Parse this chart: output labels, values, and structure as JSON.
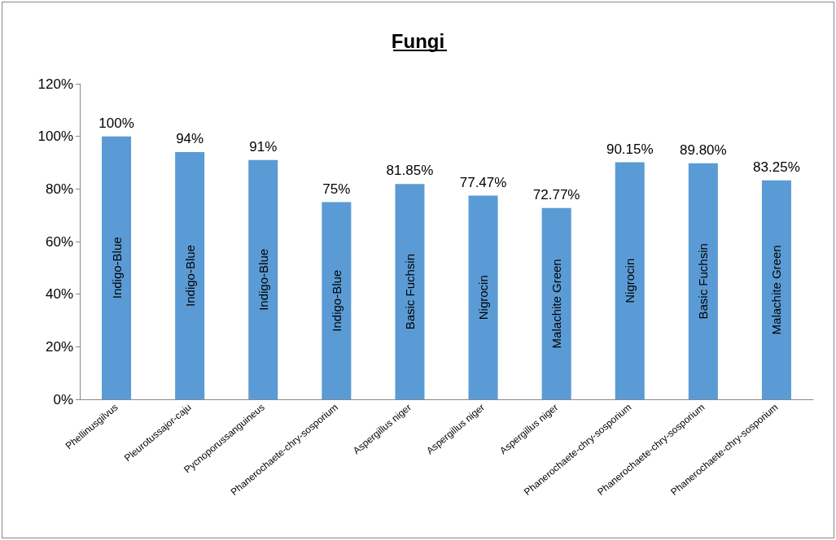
{
  "chart_data": {
    "type": "bar",
    "title": "Fungi",
    "categories": [
      "Phellinusgilvus",
      "Pleurotussajor-caju",
      "Pycnoporussanguineus",
      "Phanerochaete-chry-sosporium",
      "Aspergillus niger",
      "Aspergillus niger",
      "Aspergillus niger",
      "Phanerochaete-chry-sosporium",
      "Phanerochaete-chry-sosporium",
      "Phanerochaete-chry-sosporium"
    ],
    "values": [
      100,
      94,
      91,
      75,
      81.85,
      77.47,
      72.77,
      90.15,
      89.8,
      83.25
    ],
    "value_labels": [
      "100%",
      "94%",
      "91%",
      "75%",
      "81.85%",
      "77.47%",
      "72.77%",
      "90.15%",
      "89.80%",
      "83.25%"
    ],
    "color": "#5b9bd5",
    "annotations": [
      "Indigo-Blue",
      "Indigo-Blue",
      "Indigo-Blue",
      "Indigo-Blue",
      "Basic Fuchsin",
      "Nigrocin",
      "Malachite Green",
      "Nigrocin",
      "Basic Fuchsin",
      "Malachite Green"
    ],
    "ylim": [
      0,
      120
    ],
    "yticks": [
      {
        "value": 0,
        "label": "0%"
      },
      {
        "value": 20,
        "label": "20%"
      },
      {
        "value": 40,
        "label": "40%"
      },
      {
        "value": 60,
        "label": "60%"
      },
      {
        "value": 80,
        "label": "80%"
      },
      {
        "value": 100,
        "label": "100%"
      },
      {
        "value": 120,
        "label": "120%"
      }
    ],
    "grid": false
  }
}
